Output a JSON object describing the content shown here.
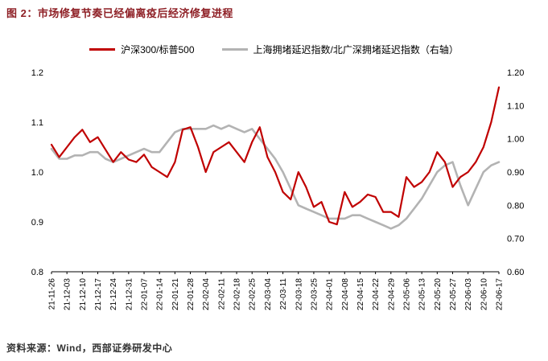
{
  "footer": {
    "source": "资料来源：Wind，西部证券研发中心"
  },
  "chart_data": {
    "type": "line",
    "title": "图 2：市场修复节奏已经偏离疫后经济修复进程",
    "title_color": "#8e1f25",
    "legend_position": "top",
    "grid": false,
    "categories": [
      "21-11-26",
      "21-12-03",
      "21-12-10",
      "21-12-17",
      "21-12-24",
      "21-12-31",
      "22-01-07",
      "22-01-14",
      "22-01-21",
      "22-01-28",
      "22-02-04",
      "22-02-11",
      "22-02-18",
      "22-02-25",
      "22-03-04",
      "22-03-11",
      "22-03-18",
      "22-03-25",
      "22-04-01",
      "22-04-08",
      "22-04-15",
      "22-04-22",
      "22-04-29",
      "22-05-06",
      "22-05-13",
      "22-05-20",
      "22-05-27",
      "22-06-03",
      "22-06-10",
      "22-06-17"
    ],
    "points_per_label": 2,
    "left_axis": {
      "min": 0.8,
      "max": 1.2,
      "ticks": [
        "1.2",
        "1.1",
        "1.0",
        "0.9",
        "0.8"
      ]
    },
    "right_axis": {
      "min": 0.6,
      "max": 1.2,
      "ticks": [
        "1.20",
        "1.10",
        "1.00",
        "0.90",
        "0.80",
        "0.70",
        "0.60"
      ]
    },
    "series": [
      {
        "name": "上海拥堵延迟指数/北广深拥堵延迟指数（右轴）",
        "axis": "right",
        "color": "#b3b3b3",
        "width": 2.6,
        "values": [
          0.97,
          0.94,
          0.94,
          0.95,
          0.95,
          0.96,
          0.96,
          0.94,
          0.93,
          0.94,
          0.95,
          0.96,
          0.97,
          0.96,
          0.96,
          0.99,
          1.02,
          1.03,
          1.03,
          1.03,
          1.03,
          1.04,
          1.03,
          1.04,
          1.03,
          1.02,
          1.03,
          1.0,
          0.97,
          0.94,
          0.9,
          0.85,
          0.8,
          0.79,
          0.78,
          0.77,
          0.76,
          0.76,
          0.76,
          0.77,
          0.77,
          0.76,
          0.75,
          0.74,
          0.73,
          0.74,
          0.76,
          0.79,
          0.82,
          0.86,
          0.9,
          0.92,
          0.93,
          0.86,
          0.8,
          0.85,
          0.9,
          0.92,
          0.93
        ]
      },
      {
        "name": "沪深300/标普500",
        "axis": "left",
        "color": "#c00000",
        "width": 2.2,
        "values": [
          1.055,
          1.03,
          1.05,
          1.07,
          1.085,
          1.06,
          1.07,
          1.045,
          1.02,
          1.04,
          1.025,
          1.02,
          1.035,
          1.01,
          1.0,
          0.99,
          1.02,
          1.085,
          1.09,
          1.05,
          1.0,
          1.04,
          1.05,
          1.06,
          1.04,
          1.02,
          1.06,
          1.09,
          1.03,
          1.0,
          0.96,
          0.945,
          1.0,
          0.97,
          0.93,
          0.94,
          0.9,
          0.895,
          0.96,
          0.93,
          0.94,
          0.955,
          0.95,
          0.92,
          0.92,
          0.91,
          0.99,
          0.97,
          0.98,
          1.0,
          1.04,
          1.02,
          0.97,
          0.99,
          1.0,
          1.02,
          1.05,
          1.1,
          1.17
        ]
      }
    ]
  }
}
